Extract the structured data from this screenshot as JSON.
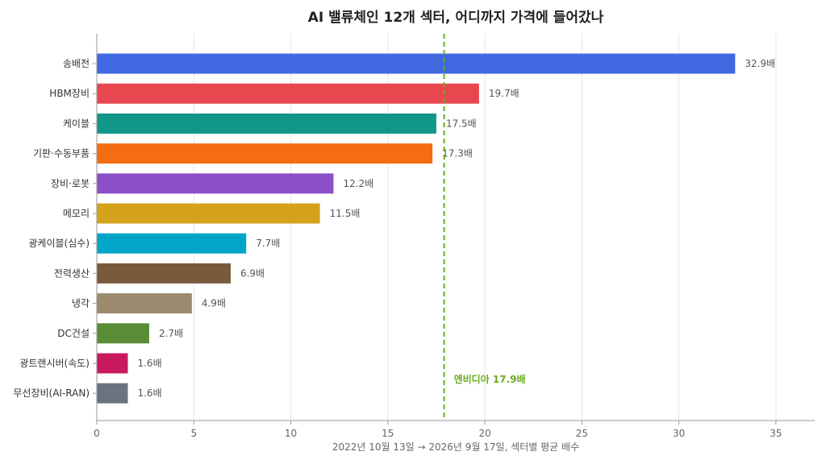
{
  "chart_data": {
    "type": "bar",
    "orientation": "horizontal",
    "title": "AI 밸류체인 12개 섹터, 어디까지 가격에 들어갔나",
    "xlabel": "2022년 10월 13일 → 2026년 9월 17일, 섹터별 평균 배수",
    "ylabel": "",
    "xlim": [
      0,
      37
    ],
    "xticks": [
      0,
      5,
      10,
      15,
      20,
      25,
      30,
      35
    ],
    "xtick_labels": [
      "0",
      "5",
      "10",
      "15",
      "20",
      "25",
      "30",
      "35"
    ],
    "grid": "vertical",
    "categories": [
      "송배전",
      "HBM장비",
      "케이블",
      "기판·수동부품",
      "장비·로봇",
      "메모리",
      "광케이블(심수)",
      "전력생산",
      "냉각",
      "DC건설",
      "광트랜시버(속도)",
      "무선장비(AI-RAN)"
    ],
    "values": [
      32.9,
      19.7,
      17.5,
      17.3,
      12.2,
      11.5,
      7.7,
      6.9,
      4.9,
      2.7,
      1.6,
      1.6
    ],
    "value_labels": [
      "32.9배",
      "19.7배",
      "17.5배",
      "17.3배",
      "12.2배",
      "11.5배",
      "7.7배",
      "6.9배",
      "4.9배",
      "2.7배",
      "1.6배",
      "1.6배"
    ],
    "colors": [
      "#4169e1",
      "#e8474f",
      "#12968a",
      "#f46d14",
      "#8c4fc9",
      "#d4a21b",
      "#00a5c8",
      "#7b5a3c",
      "#9c8b6e",
      "#5a8c36",
      "#c8195f",
      "#6b7280"
    ],
    "reference_line": {
      "value": 17.9,
      "label": "엔비디아 17.9배",
      "color": "#6aaa1e"
    }
  }
}
